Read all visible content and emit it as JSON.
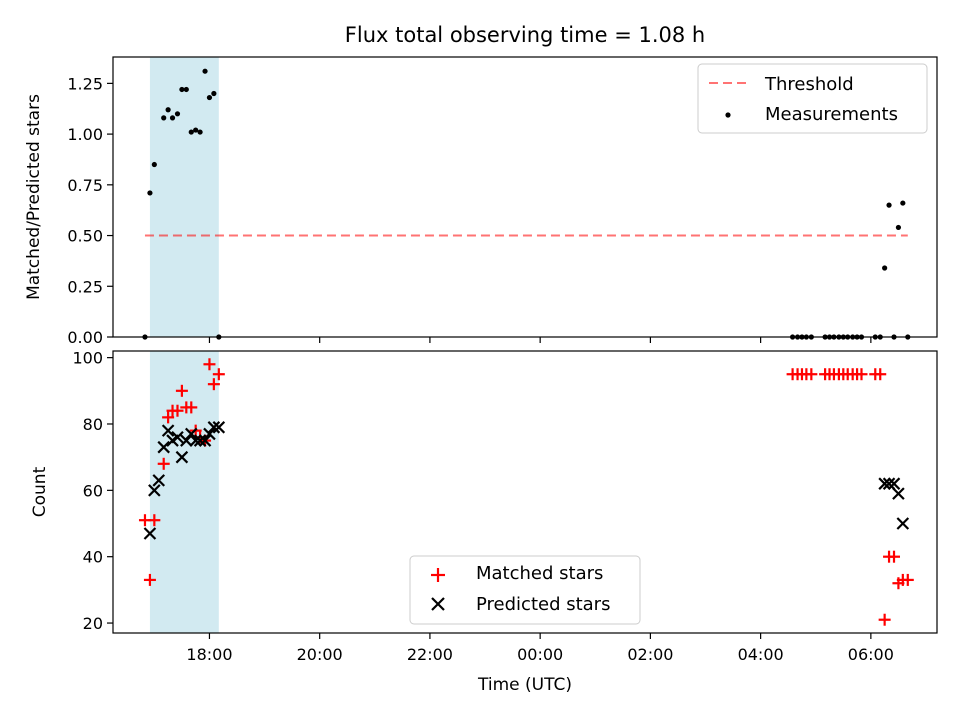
{
  "chart_data": {
    "type": "scatter",
    "title": "Flux total observing time = 1.08 h",
    "xlabel": "Time (UTC)",
    "x_ticks": [
      "18:00",
      "20:00",
      "22:00",
      "00:00",
      "02:00",
      "04:00",
      "06:00"
    ],
    "x_range_hours": [
      16.25,
      31.2
    ],
    "shaded_span_hours": [
      16.92,
      18.17
    ],
    "colors": {
      "shade": "#add8e6",
      "threshold": "#ff0000",
      "measurements": "#000000",
      "matched": "#ff0000",
      "predicted": "#000000"
    },
    "panels": [
      {
        "ylabel": "Matched/Predicted stars",
        "ylim": [
          0,
          1.38
        ],
        "y_ticks": [
          "0.00",
          "0.25",
          "0.50",
          "0.75",
          "1.00",
          "1.25"
        ],
        "y_tick_values": [
          0,
          0.25,
          0.5,
          0.75,
          1.0,
          1.25
        ],
        "threshold": {
          "name": "Threshold",
          "value": 0.5,
          "x_range": [
            16.83,
            30.67
          ]
        },
        "legend_position": "top-right",
        "series": [
          {
            "name": "Measurements",
            "marker": "dot",
            "x": [
              16.83,
              16.92,
              17.0,
              17.17,
              17.25,
              17.33,
              17.42,
              17.5,
              17.58,
              17.67,
              17.75,
              17.83,
              17.92,
              18.0,
              18.08,
              18.17,
              28.58,
              28.67,
              28.75,
              28.83,
              28.92,
              29.17,
              29.25,
              29.33,
              29.42,
              29.5,
              29.58,
              29.67,
              29.75,
              29.83,
              30.08,
              30.17,
              30.25,
              30.33,
              30.42,
              30.5,
              30.58,
              30.67
            ],
            "y": [
              0.0,
              0.71,
              0.85,
              1.08,
              1.12,
              1.08,
              1.1,
              1.22,
              1.22,
              1.01,
              1.02,
              1.01,
              1.31,
              1.18,
              1.2,
              0.0,
              0.0,
              0.0,
              0.0,
              0.0,
              0.0,
              0.0,
              0.0,
              0.0,
              0.0,
              0.0,
              0.0,
              0.0,
              0.0,
              0.0,
              0.0,
              0.0,
              0.34,
              0.65,
              0.0,
              0.54,
              0.66,
              0.0
            ]
          }
        ]
      },
      {
        "ylabel": "Count",
        "ylim": [
          17,
          102
        ],
        "y_ticks": [
          "20",
          "40",
          "60",
          "80",
          "100"
        ],
        "y_tick_values": [
          20,
          40,
          60,
          80,
          100
        ],
        "legend_position": "lower-center",
        "series": [
          {
            "name": "Matched stars",
            "marker": "plus",
            "x": [
              16.83,
              16.92,
              17.0,
              17.17,
              17.25,
              17.33,
              17.42,
              17.5,
              17.58,
              17.67,
              17.75,
              17.83,
              17.92,
              18.0,
              18.08,
              18.17,
              28.58,
              28.67,
              28.75,
              28.83,
              28.92,
              29.17,
              29.25,
              29.33,
              29.42,
              29.5,
              29.58,
              29.67,
              29.75,
              29.83,
              30.08,
              30.17,
              30.25,
              30.33,
              30.42,
              30.5,
              30.58,
              30.67
            ],
            "y": [
              51,
              33,
              51,
              68,
              82,
              84,
              84,
              90,
              85,
              85,
              78,
              76,
              75,
              98,
              92,
              95,
              95,
              95,
              95,
              95,
              95,
              95,
              95,
              95,
              95,
              95,
              95,
              95,
              95,
              95,
              95,
              95,
              21,
              40,
              40,
              32,
              33,
              33
            ]
          },
          {
            "name": "Predicted stars",
            "marker": "x",
            "x": [
              16.92,
              17.0,
              17.08,
              17.17,
              17.25,
              17.33,
              17.42,
              17.5,
              17.58,
              17.67,
              17.75,
              17.83,
              17.92,
              18.0,
              18.08,
              18.17,
              30.25,
              30.33,
              30.42,
              30.5,
              30.58
            ],
            "y": [
              47,
              60,
              63,
              73,
              78,
              75,
              76,
              70,
              75,
              77,
              75,
              75,
              75,
              77,
              79,
              79,
              62,
              62,
              62,
              59,
              50
            ]
          }
        ]
      }
    ]
  }
}
